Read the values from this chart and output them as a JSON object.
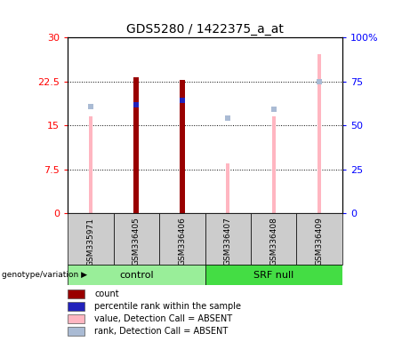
{
  "title": "GDS5280 / 1422375_a_at",
  "samples": [
    "GSM335971",
    "GSM336405",
    "GSM336406",
    "GSM336407",
    "GSM336408",
    "GSM336409"
  ],
  "value_absent": [
    16.5,
    23.2,
    22.8,
    8.5,
    16.5,
    27.2
  ],
  "rank_absent": [
    18.2,
    18.5,
    19.2,
    16.3,
    17.8,
    22.5
  ],
  "count": [
    0.0,
    23.2,
    22.8,
    0.0,
    0.0,
    0.0
  ],
  "percentile_rank": [
    0.0,
    18.5,
    19.2,
    0.0,
    0.0,
    0.0
  ],
  "ylim_left": [
    0,
    30
  ],
  "ylim_right": [
    0,
    100
  ],
  "yticks_left": [
    0,
    7.5,
    15,
    22.5,
    30
  ],
  "yticks_right": [
    0,
    25,
    50,
    75,
    100
  ],
  "ytick_labels_left": [
    "0",
    "7.5",
    "15",
    "22.5",
    "30"
  ],
  "ytick_labels_right": [
    "0",
    "25",
    "50",
    "75",
    "100%"
  ],
  "color_count": "#990000",
  "color_percentile": "#2222BB",
  "color_value_absent": "#FFB6C1",
  "color_rank_absent": "#AABBD4",
  "thin_bar_width": 0.12,
  "pink_bar_width": 0.08,
  "group_color_control": "#99EE99",
  "group_color_srf": "#44DD44",
  "group_bg": "#CCCCCC",
  "background_color": "#ffffff",
  "plot_bg": "#ffffff",
  "legend_items": [
    "count",
    "percentile rank within the sample",
    "value, Detection Call = ABSENT",
    "rank, Detection Call = ABSENT"
  ],
  "legend_colors": [
    "#990000",
    "#2222BB",
    "#FFB6C1",
    "#AABBD4"
  ]
}
